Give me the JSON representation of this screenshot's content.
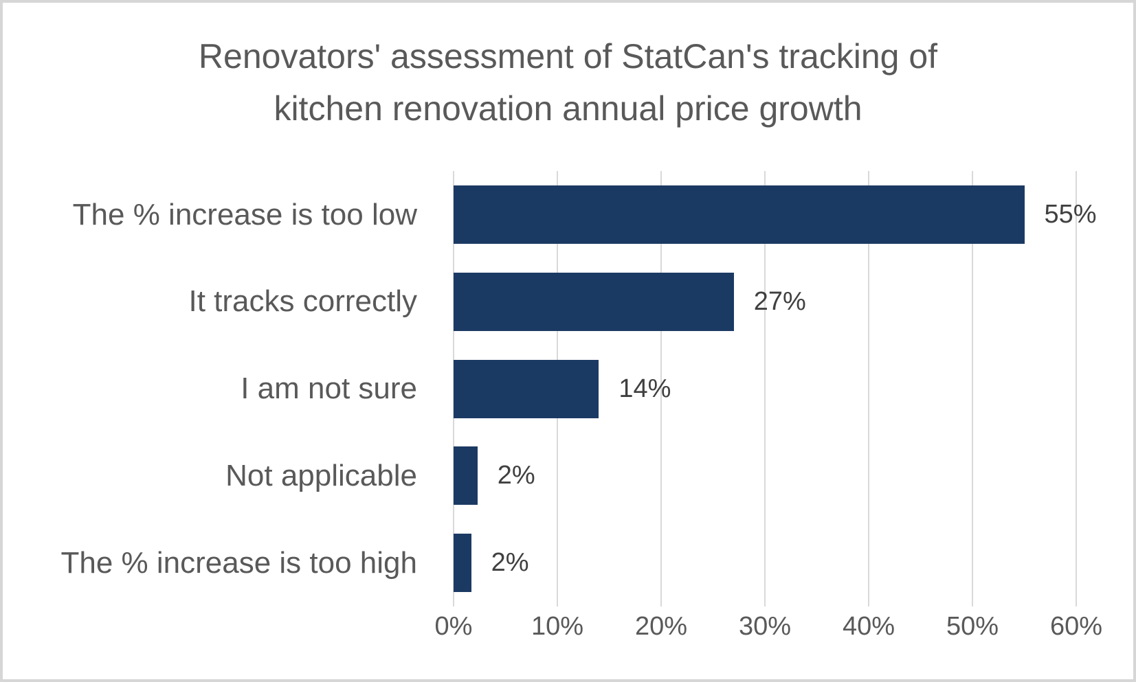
{
  "title": {
    "lines": [
      "Renovators' assessment of StatCan's tracking of",
      "kitchen renovation annual price growth"
    ]
  },
  "chart_data": {
    "type": "bar",
    "orientation": "horizontal",
    "title": "Renovators' assessment of StatCan's tracking of kitchen renovation annual price growth",
    "categories": [
      "The % increase is too low",
      "It tracks correctly",
      "I am not sure",
      "Not applicable",
      "The % increase is too high"
    ],
    "values": [
      55,
      27,
      14,
      2,
      2
    ],
    "value_labels": [
      "55%",
      "27%",
      "14%",
      "2%",
      "2%"
    ],
    "display_values": [
      55,
      27,
      14,
      2.3,
      1.7
    ],
    "xlabel": "",
    "ylabel": "",
    "xlim": [
      0,
      60
    ],
    "x_tick_values": [
      0,
      10,
      20,
      30,
      40,
      50,
      60
    ],
    "x_tick_labels": [
      "0%",
      "10%",
      "20%",
      "30%",
      "40%",
      "50%",
      "60%"
    ],
    "grid": "vertical-only",
    "legend": "none"
  },
  "colors": {
    "bar": "#1b3a63",
    "gridline": "#d9d9d9",
    "title_text": "#595959",
    "category_text": "#595959",
    "tick_text": "#595959",
    "value_text": "#404040",
    "background": "#ffffff",
    "frame_border": "#d6d6d6"
  }
}
